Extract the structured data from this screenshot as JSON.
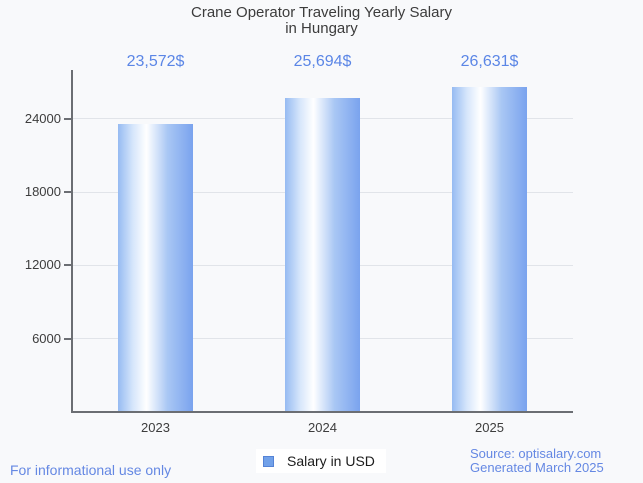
{
  "chart_data": {
    "type": "bar",
    "title": "Crane Operator Traveling Yearly Salary in Hungary",
    "title_lines": [
      "Crane Operator Traveling Yearly Salary",
      "in Hungary"
    ],
    "categories": [
      "2023",
      "2024",
      "2025"
    ],
    "values": [
      23572,
      25694,
      26631
    ],
    "value_labels": [
      "23,572$",
      "25,694$",
      "26,631$"
    ],
    "series": [
      {
        "name": "Salary in USD",
        "values": [
          23572,
          25694,
          26631
        ]
      }
    ],
    "xlabel": "",
    "ylabel": "",
    "ylim": [
      0,
      28000
    ],
    "yticks": [
      6000,
      12000,
      18000,
      24000
    ],
    "ytick_labels": [
      "6000",
      "12000",
      "18000",
      "24000"
    ],
    "grid": true,
    "legend_position": "bottom"
  },
  "legend": {
    "label": "Salary in USD",
    "swatch_color": "#71a1e9"
  },
  "footer": {
    "disclaimer": "For informational use only",
    "source": "Source: optisalary.com",
    "generated": "Generated March 2025"
  },
  "colors": {
    "background": "#f8f9fb",
    "title_text": "#3c3c3c",
    "axis_text": "#3d3d3d",
    "axis_line": "#6b6e73",
    "gridline": "#e1e4e9",
    "value_label_blue": "#5b86e6",
    "footer_blue": "#6588e3",
    "legend_swatch_fill": "#71a1e9",
    "legend_swatch_border": "#5583d6",
    "bar_gradient": [
      "#96bbf2 0%",
      "#d6e6fb 20%",
      "#ffffff 38%",
      "#a9c7f4 66%",
      "#7aa3ee 100%"
    ]
  }
}
